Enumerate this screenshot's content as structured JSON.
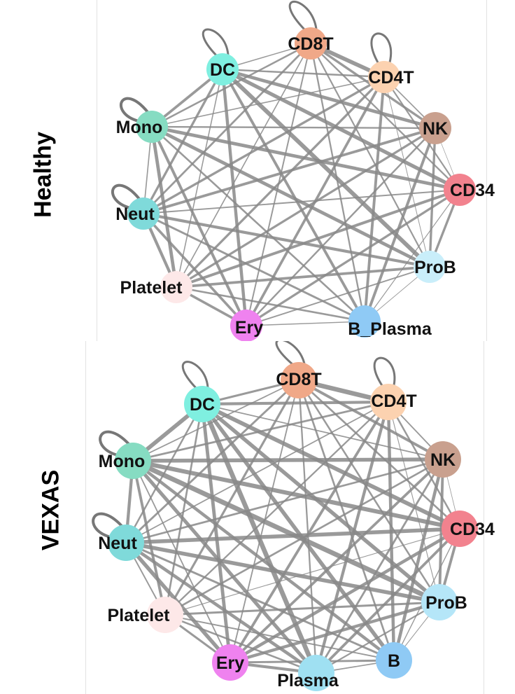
{
  "panels": [
    {
      "condition": "Healthy",
      "nodes": [
        {
          "id": "CD8T",
          "label": "CD8T",
          "color": "#f0a888"
        },
        {
          "id": "CD4T",
          "label": "CD4T",
          "color": "#fcd2b0"
        },
        {
          "id": "NK",
          "label": "NK",
          "color": "#c9a08e"
        },
        {
          "id": "CD34",
          "label": "CD34",
          "color": "#f2828e"
        },
        {
          "id": "ProB",
          "label": "ProB",
          "color": "#c9eefa"
        },
        {
          "id": "B_Plasma",
          "label": "B_Plasma",
          "color": "#8fcaf5"
        },
        {
          "id": "Ery",
          "label": "Ery",
          "color": "#ef82ef"
        },
        {
          "id": "Platelet",
          "label": "Platelet",
          "color": "#fde8e8"
        },
        {
          "id": "Neut",
          "label": "Neut",
          "color": "#7fdada"
        },
        {
          "id": "Mono",
          "label": "Mono",
          "color": "#86dcc2"
        },
        {
          "id": "DC",
          "label": "DC",
          "color": "#7fefe0"
        }
      ],
      "self_loops": [
        "CD8T",
        "CD4T",
        "DC",
        "Mono",
        "Neut"
      ]
    },
    {
      "condition": "VEXAS",
      "nodes": [
        {
          "id": "CD8T",
          "label": "CD8T",
          "color": "#f0a888"
        },
        {
          "id": "CD4T",
          "label": "CD4T",
          "color": "#fcd2b0"
        },
        {
          "id": "NK",
          "label": "NK",
          "color": "#c9a08e"
        },
        {
          "id": "CD34",
          "label": "CD34",
          "color": "#f2828e"
        },
        {
          "id": "ProB",
          "label": "ProB",
          "color": "#b5e6f8"
        },
        {
          "id": "B",
          "label": "B",
          "color": "#8fcaf5"
        },
        {
          "id": "Plasma",
          "label": "Plasma",
          "color": "#9fe0f2"
        },
        {
          "id": "Ery",
          "label": "Ery",
          "color": "#ef82ef"
        },
        {
          "id": "Platelet",
          "label": "Platelet",
          "color": "#fde8e8"
        },
        {
          "id": "Neut",
          "label": "Neut",
          "color": "#7fdada"
        },
        {
          "id": "Mono",
          "label": "Mono",
          "color": "#86dcc2"
        },
        {
          "id": "DC",
          "label": "DC",
          "color": "#7fefe0"
        }
      ],
      "self_loops": [
        "CD8T",
        "CD4T",
        "DC",
        "Mono",
        "Neut"
      ]
    }
  ],
  "edge_color": "#888888"
}
